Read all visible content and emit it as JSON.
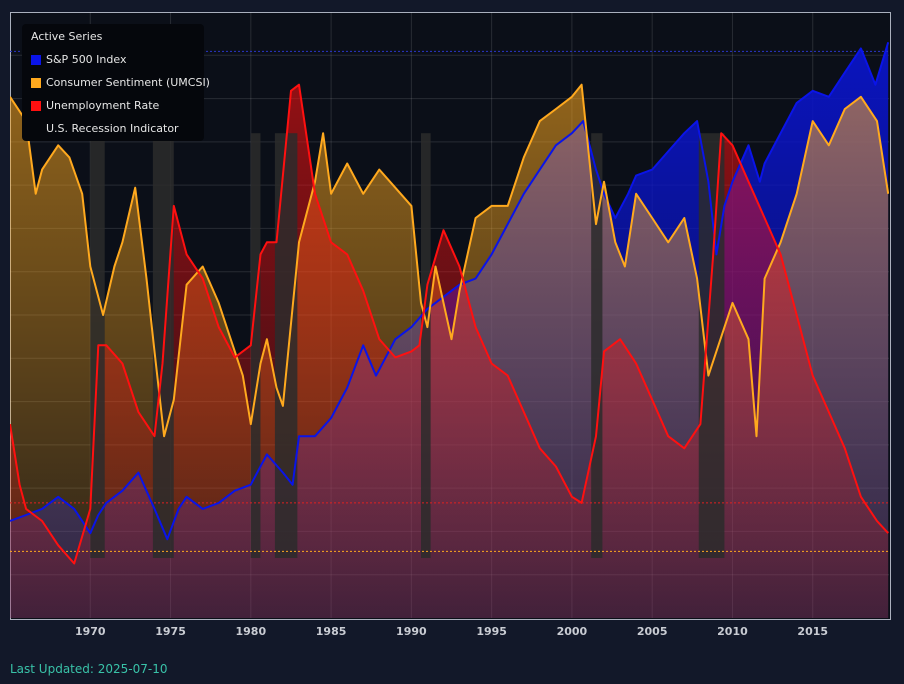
{
  "toolbar": {},
  "legend": {
    "title": "Active Series",
    "items": [
      {
        "label": "S&P 500 Index",
        "color": "#0a14e8"
      },
      {
        "label": "Consumer Sentiment (UMCSI)",
        "color": "#ffa91e"
      },
      {
        "label": "Unemployment Rate",
        "color": "#ff1010"
      },
      {
        "label": "U.S. Recession Indicator",
        "color": "#3a3a3a"
      }
    ]
  },
  "footer": {
    "last_updated": "Last Updated: 2025-07-10"
  },
  "chart_data": {
    "type": "area",
    "x_range": [
      1965.0,
      2019.75
    ],
    "xticks": [
      "1970",
      "1975",
      "1980",
      "1985",
      "1990",
      "1995",
      "2000",
      "2005",
      "2010",
      "2015"
    ],
    "y_ticks_shown": false,
    "grid": true,
    "legend_position": "top-left",
    "series": [
      {
        "name": "S&P 500 Index",
        "color": "#0a14e8",
        "points": [
          [
            1965.0,
            0.16
          ],
          [
            1966.0,
            0.17
          ],
          [
            1967.0,
            0.18
          ],
          [
            1968.0,
            0.2
          ],
          [
            1969.0,
            0.18
          ],
          [
            1970.0,
            0.14
          ],
          [
            1970.5,
            0.17
          ],
          [
            1971.0,
            0.19
          ],
          [
            1972.0,
            0.21
          ],
          [
            1973.0,
            0.24
          ],
          [
            1974.0,
            0.18
          ],
          [
            1974.8,
            0.13
          ],
          [
            1975.5,
            0.18
          ],
          [
            1976.0,
            0.2
          ],
          [
            1977.0,
            0.18
          ],
          [
            1978.0,
            0.19
          ],
          [
            1979.0,
            0.21
          ],
          [
            1980.0,
            0.22
          ],
          [
            1981.0,
            0.27
          ],
          [
            1982.0,
            0.24
          ],
          [
            1982.6,
            0.22
          ],
          [
            1983.0,
            0.3
          ],
          [
            1984.0,
            0.3
          ],
          [
            1985.0,
            0.33
          ],
          [
            1986.0,
            0.38
          ],
          [
            1987.0,
            0.45
          ],
          [
            1987.8,
            0.4
          ],
          [
            1988.0,
            0.41
          ],
          [
            1989.0,
            0.46
          ],
          [
            1990.0,
            0.48
          ],
          [
            1991.0,
            0.51
          ],
          [
            1992.0,
            0.53
          ],
          [
            1993.0,
            0.55
          ],
          [
            1994.0,
            0.56
          ],
          [
            1995.0,
            0.6
          ],
          [
            1996.0,
            0.65
          ],
          [
            1997.0,
            0.7
          ],
          [
            1998.0,
            0.74
          ],
          [
            1999.0,
            0.78
          ],
          [
            2000.0,
            0.8
          ],
          [
            2000.7,
            0.82
          ],
          [
            2001.5,
            0.74
          ],
          [
            2002.0,
            0.7
          ],
          [
            2002.7,
            0.66
          ],
          [
            2003.5,
            0.7
          ],
          [
            2004.0,
            0.73
          ],
          [
            2005.0,
            0.74
          ],
          [
            2006.0,
            0.77
          ],
          [
            2007.0,
            0.8
          ],
          [
            2007.8,
            0.82
          ],
          [
            2008.5,
            0.72
          ],
          [
            2009.0,
            0.6
          ],
          [
            2009.5,
            0.68
          ],
          [
            2010.0,
            0.72
          ],
          [
            2011.0,
            0.78
          ],
          [
            2011.7,
            0.72
          ],
          [
            2012.0,
            0.75
          ],
          [
            2013.0,
            0.8
          ],
          [
            2014.0,
            0.85
          ],
          [
            2015.0,
            0.87
          ],
          [
            2016.0,
            0.86
          ],
          [
            2017.0,
            0.9
          ],
          [
            2018.0,
            0.94
          ],
          [
            2018.9,
            0.88
          ],
          [
            2019.7,
            0.95
          ]
        ]
      },
      {
        "name": "Consumer Sentiment (UMCSI)",
        "color": "#ffa91e",
        "points": [
          [
            1965.0,
            0.86
          ],
          [
            1966.0,
            0.82
          ],
          [
            1966.6,
            0.7
          ],
          [
            1967.0,
            0.74
          ],
          [
            1968.0,
            0.78
          ],
          [
            1968.7,
            0.76
          ],
          [
            1969.5,
            0.7
          ],
          [
            1970.0,
            0.58
          ],
          [
            1970.8,
            0.5
          ],
          [
            1971.5,
            0.58
          ],
          [
            1972.0,
            0.62
          ],
          [
            1972.8,
            0.71
          ],
          [
            1973.5,
            0.56
          ],
          [
            1974.0,
            0.44
          ],
          [
            1974.6,
            0.3
          ],
          [
            1975.2,
            0.36
          ],
          [
            1976.0,
            0.55
          ],
          [
            1977.0,
            0.58
          ],
          [
            1978.0,
            0.52
          ],
          [
            1979.0,
            0.44
          ],
          [
            1979.5,
            0.4
          ],
          [
            1980.0,
            0.32
          ],
          [
            1980.6,
            0.42
          ],
          [
            1981.0,
            0.46
          ],
          [
            1981.6,
            0.38
          ],
          [
            1982.0,
            0.35
          ],
          [
            1983.0,
            0.62
          ],
          [
            1984.0,
            0.72
          ],
          [
            1984.5,
            0.8
          ],
          [
            1985.0,
            0.7
          ],
          [
            1986.0,
            0.75
          ],
          [
            1987.0,
            0.7
          ],
          [
            1988.0,
            0.74
          ],
          [
            1989.0,
            0.71
          ],
          [
            1990.0,
            0.68
          ],
          [
            1990.6,
            0.52
          ],
          [
            1991.0,
            0.48
          ],
          [
            1991.5,
            0.58
          ],
          [
            1992.0,
            0.52
          ],
          [
            1992.5,
            0.46
          ],
          [
            1993.0,
            0.54
          ],
          [
            1994.0,
            0.66
          ],
          [
            1995.0,
            0.68
          ],
          [
            1996.0,
            0.68
          ],
          [
            1997.0,
            0.76
          ],
          [
            1998.0,
            0.82
          ],
          [
            1999.0,
            0.84
          ],
          [
            2000.0,
            0.86
          ],
          [
            2000.6,
            0.88
          ],
          [
            2001.5,
            0.65
          ],
          [
            2002.0,
            0.72
          ],
          [
            2002.7,
            0.62
          ],
          [
            2003.3,
            0.58
          ],
          [
            2004.0,
            0.7
          ],
          [
            2005.0,
            0.66
          ],
          [
            2006.0,
            0.62
          ],
          [
            2007.0,
            0.66
          ],
          [
            2007.8,
            0.56
          ],
          [
            2008.5,
            0.4
          ],
          [
            2009.0,
            0.44
          ],
          [
            2010.0,
            0.52
          ],
          [
            2011.0,
            0.46
          ],
          [
            2011.5,
            0.3
          ],
          [
            2012.0,
            0.56
          ],
          [
            2013.0,
            0.62
          ],
          [
            2014.0,
            0.7
          ],
          [
            2015.0,
            0.82
          ],
          [
            2016.0,
            0.78
          ],
          [
            2017.0,
            0.84
          ],
          [
            2018.0,
            0.86
          ],
          [
            2019.0,
            0.82
          ],
          [
            2019.7,
            0.7
          ]
        ]
      },
      {
        "name": "Unemployment Rate",
        "color": "#ff1010",
        "points": [
          [
            1965.0,
            0.32
          ],
          [
            1965.6,
            0.22
          ],
          [
            1966.0,
            0.18
          ],
          [
            1967.0,
            0.16
          ],
          [
            1968.0,
            0.12
          ],
          [
            1969.0,
            0.09
          ],
          [
            1970.0,
            0.18
          ],
          [
            1970.5,
            0.45
          ],
          [
            1971.0,
            0.45
          ],
          [
            1972.0,
            0.42
          ],
          [
            1973.0,
            0.34
          ],
          [
            1974.0,
            0.3
          ],
          [
            1974.5,
            0.42
          ],
          [
            1975.2,
            0.68
          ],
          [
            1976.0,
            0.6
          ],
          [
            1977.0,
            0.56
          ],
          [
            1978.0,
            0.48
          ],
          [
            1979.0,
            0.43
          ],
          [
            1980.0,
            0.45
          ],
          [
            1980.6,
            0.6
          ],
          [
            1981.0,
            0.62
          ],
          [
            1981.6,
            0.62
          ],
          [
            1982.5,
            0.87
          ],
          [
            1983.0,
            0.88
          ],
          [
            1984.0,
            0.7
          ],
          [
            1985.0,
            0.62
          ],
          [
            1986.0,
            0.6
          ],
          [
            1987.0,
            0.54
          ],
          [
            1988.0,
            0.46
          ],
          [
            1989.0,
            0.43
          ],
          [
            1990.0,
            0.44
          ],
          [
            1990.5,
            0.45
          ],
          [
            1991.0,
            0.55
          ],
          [
            1992.0,
            0.64
          ],
          [
            1993.0,
            0.58
          ],
          [
            1994.0,
            0.48
          ],
          [
            1995.0,
            0.42
          ],
          [
            1996.0,
            0.4
          ],
          [
            1997.0,
            0.34
          ],
          [
            1998.0,
            0.28
          ],
          [
            1999.0,
            0.25
          ],
          [
            2000.0,
            0.2
          ],
          [
            2000.6,
            0.19
          ],
          [
            2001.5,
            0.3
          ],
          [
            2002.0,
            0.44
          ],
          [
            2003.0,
            0.46
          ],
          [
            2004.0,
            0.42
          ],
          [
            2005.0,
            0.36
          ],
          [
            2006.0,
            0.3
          ],
          [
            2007.0,
            0.28
          ],
          [
            2008.0,
            0.32
          ],
          [
            2008.8,
            0.6
          ],
          [
            2009.3,
            0.8
          ],
          [
            2010.0,
            0.78
          ],
          [
            2011.0,
            0.72
          ],
          [
            2012.0,
            0.66
          ],
          [
            2013.0,
            0.6
          ],
          [
            2014.0,
            0.5
          ],
          [
            2015.0,
            0.4
          ],
          [
            2016.0,
            0.34
          ],
          [
            2017.0,
            0.28
          ],
          [
            2018.0,
            0.2
          ],
          [
            2019.0,
            0.16
          ],
          [
            2019.7,
            0.14
          ]
        ]
      },
      {
        "name": "U.S. Recession Indicator",
        "color": "#3a3a3a",
        "periods": [
          [
            1970.0,
            1970.9
          ],
          [
            1973.9,
            1975.2
          ],
          [
            1980.0,
            1980.6
          ],
          [
            1981.5,
            1982.9
          ],
          [
            1990.6,
            1991.2
          ],
          [
            2001.2,
            2001.9
          ],
          [
            2007.9,
            2009.5
          ]
        ]
      }
    ],
    "reference_lines": [
      {
        "y": 0.935,
        "color": "#2a35c8"
      },
      {
        "y": 0.19,
        "color": "#e02020"
      },
      {
        "y": 0.11,
        "color": "#ffa91e"
      }
    ]
  }
}
